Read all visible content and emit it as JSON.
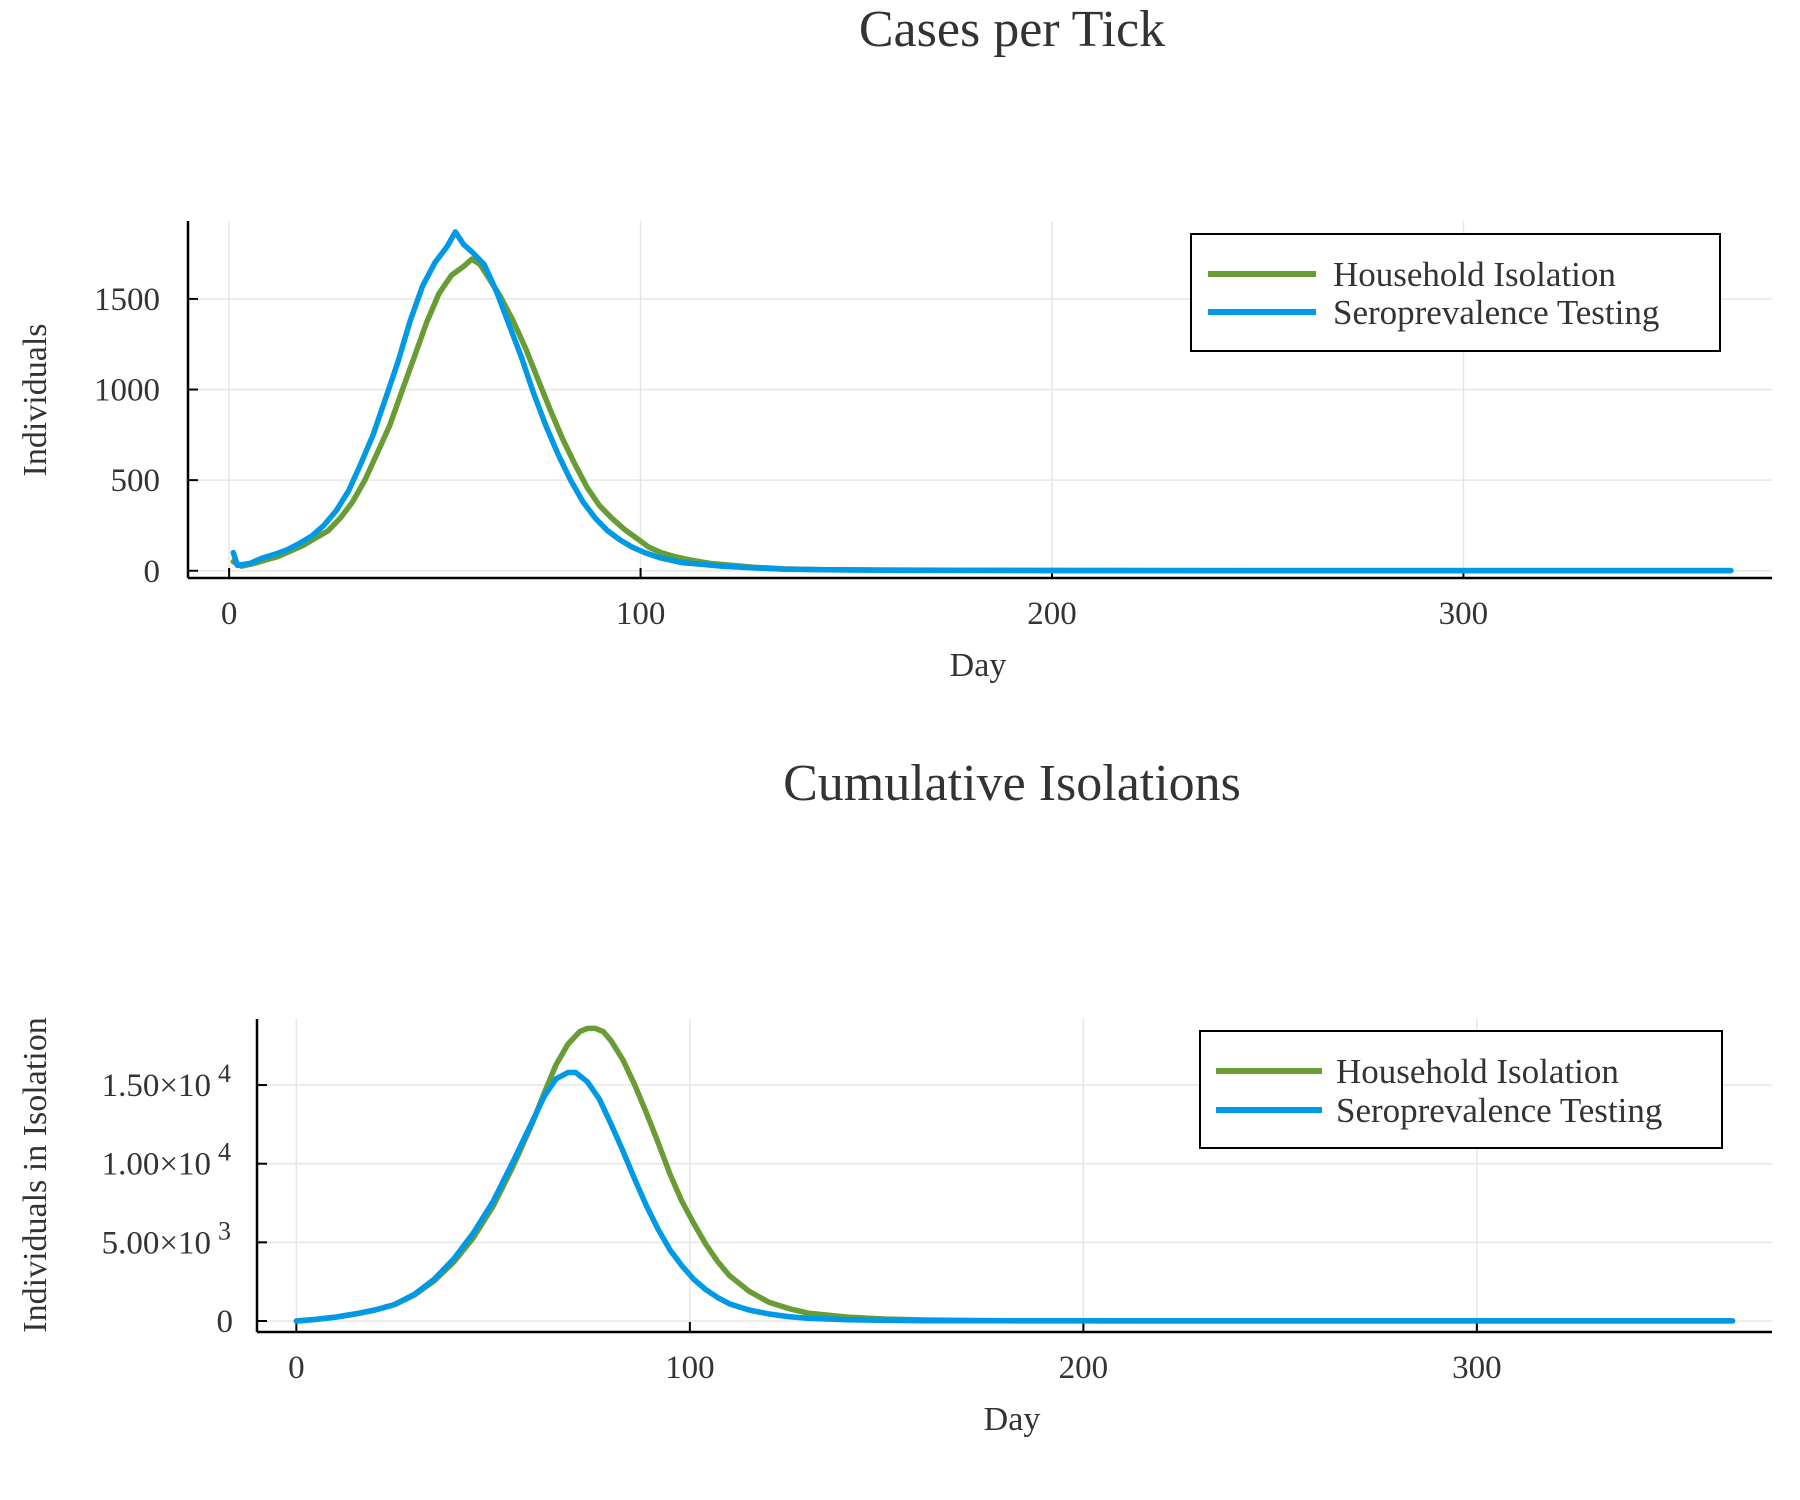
{
  "chart_data": [
    {
      "type": "line",
      "title": "Cases per Tick",
      "xlabel": "Day",
      "ylabel": "Individuals",
      "xlim": [
        -10,
        375
      ],
      "ylim": [
        -40,
        1930
      ],
      "x_ticks": [
        0,
        100,
        200,
        300
      ],
      "x_tick_labels": [
        "0",
        "100",
        "200",
        "300"
      ],
      "y_ticks": [
        0,
        500,
        1000,
        1500
      ],
      "y_tick_labels": [
        "0",
        "500",
        "1000",
        "1500"
      ],
      "grid": true,
      "legend_position": "top-right",
      "series": [
        {
          "name": "Household Isolation",
          "color": "#6a9c35",
          "points": [
            [
              1,
              50
            ],
            [
              3,
              25
            ],
            [
              6,
              40
            ],
            [
              9,
              60
            ],
            [
              12,
              80
            ],
            [
              15,
              110
            ],
            [
              18,
              140
            ],
            [
              21,
              180
            ],
            [
              24,
              220
            ],
            [
              27,
              290
            ],
            [
              30,
              380
            ],
            [
              33,
              500
            ],
            [
              36,
              650
            ],
            [
              39,
              800
            ],
            [
              42,
              990
            ],
            [
              45,
              1180
            ],
            [
              48,
              1370
            ],
            [
              51,
              1530
            ],
            [
              54,
              1630
            ],
            [
              57,
              1680
            ],
            [
              59,
              1720
            ],
            [
              61,
              1690
            ],
            [
              63,
              1620
            ],
            [
              66,
              1510
            ],
            [
              69,
              1380
            ],
            [
              72,
              1230
            ],
            [
              75,
              1060
            ],
            [
              78,
              890
            ],
            [
              81,
              730
            ],
            [
              84,
              590
            ],
            [
              87,
              460
            ],
            [
              90,
              360
            ],
            [
              93,
              290
            ],
            [
              96,
              230
            ],
            [
              99,
              180
            ],
            [
              102,
              130
            ],
            [
              105,
              100
            ],
            [
              108,
              80
            ],
            [
              112,
              60
            ],
            [
              117,
              40
            ],
            [
              122,
              30
            ],
            [
              127,
              20
            ],
            [
              135,
              10
            ],
            [
              145,
              6
            ],
            [
              160,
              4
            ],
            [
              180,
              2
            ],
            [
              200,
              2
            ],
            [
              250,
              1
            ],
            [
              300,
              1
            ],
            [
              365,
              1
            ]
          ]
        },
        {
          "name": "Seroprevalence Testing",
          "color": "#0099e6",
          "points": [
            [
              1,
              100
            ],
            [
              2,
              30
            ],
            [
              5,
              40
            ],
            [
              8,
              70
            ],
            [
              11,
              90
            ],
            [
              14,
              115
            ],
            [
              17,
              150
            ],
            [
              20,
              190
            ],
            [
              23,
              250
            ],
            [
              26,
              330
            ],
            [
              29,
              440
            ],
            [
              32,
              590
            ],
            [
              35,
              750
            ],
            [
              38,
              950
            ],
            [
              41,
              1150
            ],
            [
              44,
              1380
            ],
            [
              47,
              1570
            ],
            [
              50,
              1700
            ],
            [
              53,
              1790
            ],
            [
              55,
              1870
            ],
            [
              57,
              1800
            ],
            [
              59,
              1760
            ],
            [
              62,
              1690
            ],
            [
              65,
              1540
            ],
            [
              68,
              1360
            ],
            [
              71,
              1180
            ],
            [
              74,
              980
            ],
            [
              77,
              800
            ],
            [
              80,
              640
            ],
            [
              83,
              500
            ],
            [
              86,
              380
            ],
            [
              89,
              290
            ],
            [
              92,
              220
            ],
            [
              95,
              170
            ],
            [
              98,
              130
            ],
            [
              101,
              100
            ],
            [
              105,
              70
            ],
            [
              110,
              45
            ],
            [
              115,
              35
            ],
            [
              120,
              25
            ],
            [
              128,
              15
            ],
            [
              135,
              8
            ],
            [
              145,
              5
            ],
            [
              160,
              3
            ],
            [
              180,
              2
            ],
            [
              200,
              1
            ],
            [
              250,
              1
            ],
            [
              300,
              1
            ],
            [
              365,
              1
            ]
          ]
        }
      ]
    },
    {
      "type": "line",
      "title": "Cumulative Isolations",
      "xlabel": "Day",
      "ylabel": "Individuals in Isolation",
      "xlim": [
        -10,
        375
      ],
      "ylim": [
        -700,
        19200
      ],
      "x_ticks": [
        0,
        100,
        200,
        300
      ],
      "x_tick_labels": [
        "0",
        "100",
        "200",
        "300"
      ],
      "y_ticks": [
        0,
        5000,
        10000,
        15000
      ],
      "y_tick_labels": [
        {
          "base": "0",
          "exp": ""
        },
        {
          "base": "5.00×10",
          "exp": "3"
        },
        {
          "base": "1.00×10",
          "exp": "4"
        },
        {
          "base": "1.50×10",
          "exp": "4"
        }
      ],
      "grid": true,
      "legend_position": "top-right",
      "series": [
        {
          "name": "Household Isolation",
          "color": "#6a9c35",
          "points": [
            [
              0,
              0
            ],
            [
              5,
              100
            ],
            [
              10,
              250
            ],
            [
              15,
              450
            ],
            [
              20,
              700
            ],
            [
              25,
              1050
            ],
            [
              30,
              1650
            ],
            [
              35,
              2550
            ],
            [
              40,
              3750
            ],
            [
              45,
              5300
            ],
            [
              50,
              7300
            ],
            [
              55,
              9800
            ],
            [
              60,
              12600
            ],
            [
              63,
              14500
            ],
            [
              66,
              16300
            ],
            [
              69,
              17600
            ],
            [
              72,
              18400
            ],
            [
              74,
              18600
            ],
            [
              76,
              18600
            ],
            [
              78,
              18400
            ],
            [
              80,
              17800
            ],
            [
              83,
              16600
            ],
            [
              86,
              15000
            ],
            [
              89,
              13200
            ],
            [
              92,
              11300
            ],
            [
              95,
              9300
            ],
            [
              98,
              7600
            ],
            [
              101,
              6200
            ],
            [
              104,
              4900
            ],
            [
              107,
              3800
            ],
            [
              110,
              2900
            ],
            [
              115,
              1900
            ],
            [
              120,
              1200
            ],
            [
              125,
              800
            ],
            [
              130,
              500
            ],
            [
              140,
              250
            ],
            [
              150,
              120
            ],
            [
              160,
              60
            ],
            [
              180,
              20
            ],
            [
              200,
              10
            ],
            [
              250,
              5
            ],
            [
              300,
              5
            ],
            [
              365,
              5
            ]
          ]
        },
        {
          "name": "Seroprevalence Testing",
          "color": "#0099e6",
          "points": [
            [
              0,
              0
            ],
            [
              5,
              100
            ],
            [
              10,
              250
            ],
            [
              15,
              450
            ],
            [
              20,
              700
            ],
            [
              25,
              1050
            ],
            [
              30,
              1700
            ],
            [
              35,
              2650
            ],
            [
              40,
              3950
            ],
            [
              45,
              5600
            ],
            [
              50,
              7600
            ],
            [
              55,
              10100
            ],
            [
              60,
              12700
            ],
            [
              63,
              14300
            ],
            [
              66,
              15400
            ],
            [
              69,
              15800
            ],
            [
              71,
              15800
            ],
            [
              74,
              15200
            ],
            [
              77,
              14100
            ],
            [
              80,
              12500
            ],
            [
              83,
              10800
            ],
            [
              86,
              9000
            ],
            [
              89,
              7300
            ],
            [
              92,
              5800
            ],
            [
              95,
              4500
            ],
            [
              98,
              3500
            ],
            [
              101,
              2650
            ],
            [
              104,
              2000
            ],
            [
              107,
              1500
            ],
            [
              110,
              1100
            ],
            [
              115,
              700
            ],
            [
              120,
              450
            ],
            [
              125,
              280
            ],
            [
              130,
              170
            ],
            [
              140,
              80
            ],
            [
              150,
              40
            ],
            [
              160,
              20
            ],
            [
              180,
              10
            ],
            [
              200,
              5
            ],
            [
              250,
              3
            ],
            [
              300,
              3
            ],
            [
              365,
              3
            ]
          ]
        }
      ]
    }
  ]
}
